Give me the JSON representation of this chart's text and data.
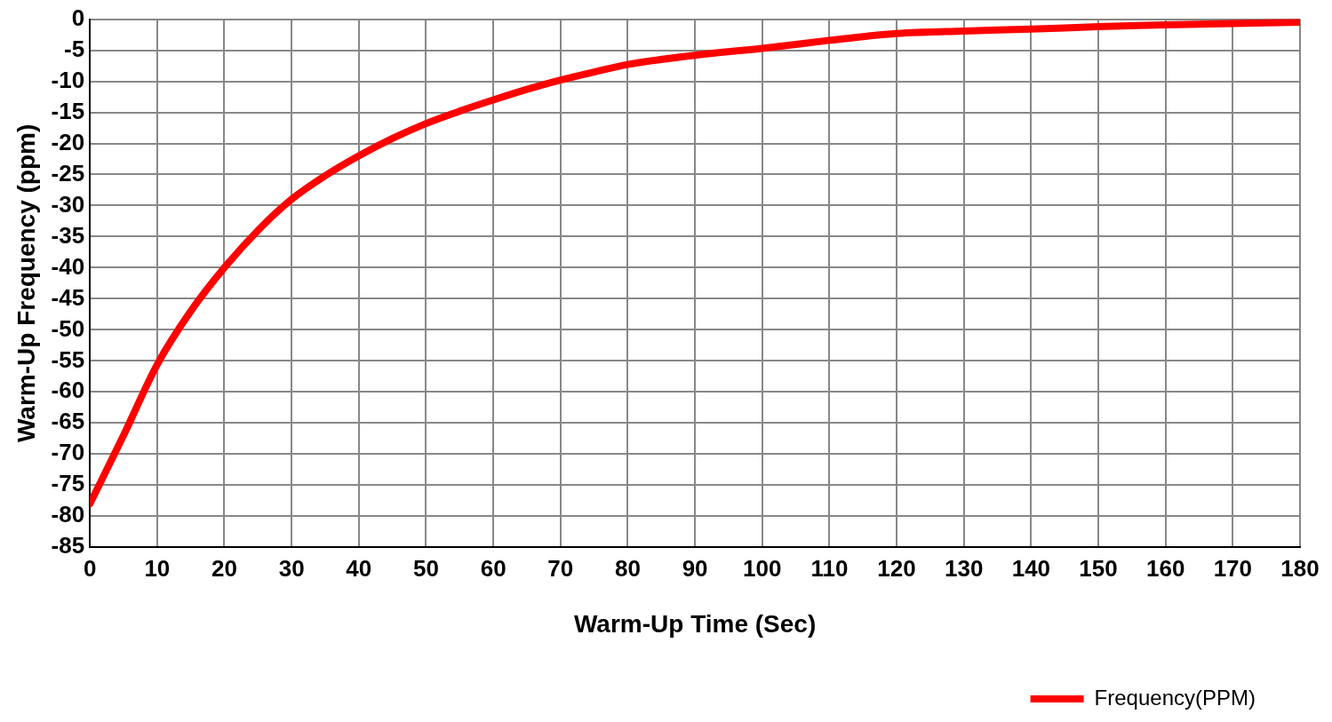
{
  "chart_data": {
    "type": "line",
    "xlabel": "Warm-Up Time (Sec)",
    "ylabel": "Warm-Up Frequency (ppm)",
    "x": [
      0,
      5,
      10,
      15,
      20,
      25,
      30,
      35,
      40,
      45,
      50,
      55,
      60,
      65,
      70,
      75,
      80,
      90,
      100,
      110,
      115,
      120,
      130,
      140,
      150,
      160,
      170,
      180
    ],
    "series": [
      {
        "name": "Frequency(PPM)",
        "color": "#ff0000",
        "values": [
          -78,
          -67,
          -55.6,
          -47,
          -40,
          -34,
          -29,
          -25.2,
          -22,
          -19.2,
          -16.8,
          -14.8,
          -13,
          -11.3,
          -9.8,
          -8.5,
          -7.3,
          -5.8,
          -4.7,
          -3.4,
          -2.8,
          -2.3,
          -1.9,
          -1.6,
          -1.2,
          -0.9,
          -0.7,
          -0.5
        ]
      }
    ],
    "xlim": [
      0,
      180
    ],
    "xticks": [
      0,
      10,
      20,
      30,
      40,
      50,
      60,
      70,
      80,
      90,
      100,
      110,
      120,
      130,
      140,
      150,
      160,
      170,
      180
    ],
    "ylim": [
      -85,
      0
    ],
    "yticks": [
      0,
      -5,
      -10,
      -15,
      -20,
      -25,
      -30,
      -35,
      -40,
      -45,
      -50,
      -55,
      -60,
      -65,
      -70,
      -75,
      -80,
      -85
    ],
    "grid": true,
    "legend": "bottom right",
    "marker": "none",
    "line_style": "solid"
  }
}
